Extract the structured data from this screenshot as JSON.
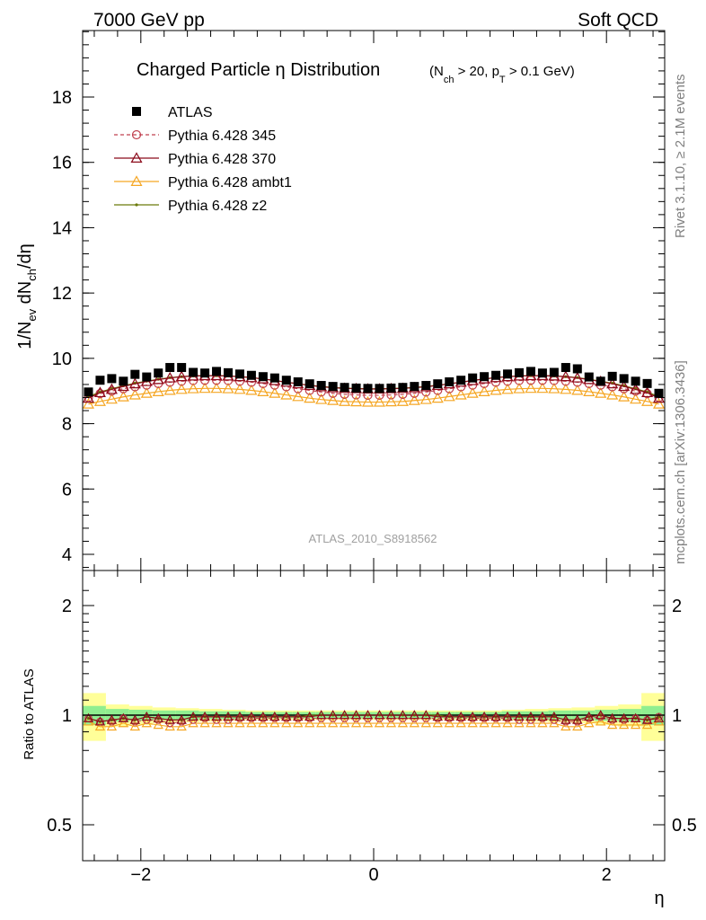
{
  "header": {
    "left": "7000 GeV pp",
    "right": "Soft QCD"
  },
  "side_labels": {
    "rivet": "Rivet 3.1.10, ≥ 2.1M events",
    "mcplots": "mcplots.cern.ch [arXiv:1306.3436]"
  },
  "colors": {
    "atlas": "#000000",
    "p345": "#c0404f",
    "p370": "#8b0a1a",
    "ambt1": "#f5a623",
    "z2": "#6b7a0a",
    "band_inner": "#90ee90",
    "band_outer": "#ffff99"
  },
  "chart_data": [
    {
      "type": "scatter",
      "title_main": "Charged Particle η Distribution",
      "title_sub": "(N_ch > 20, p_T > 0.1 GeV)",
      "analysis_label": "ATLAS_2010_S8918562",
      "ylabel": "1/N_ev dN_ch/dη",
      "xlabel": "η",
      "xlim": [
        -2.5,
        2.5
      ],
      "ylim": [
        3.6,
        20.0
      ],
      "yticks": [
        4,
        6,
        8,
        10,
        12,
        14,
        16,
        18
      ],
      "xticks": [
        -2,
        0,
        2
      ],
      "legend_position": "top-left",
      "x": [
        -2.45,
        -2.35,
        -2.25,
        -2.15,
        -2.05,
        -1.95,
        -1.85,
        -1.75,
        -1.65,
        -1.55,
        -1.45,
        -1.35,
        -1.25,
        -1.15,
        -1.05,
        -0.95,
        -0.85,
        -0.75,
        -0.65,
        -0.55,
        -0.45,
        -0.35,
        -0.25,
        -0.15,
        -0.05,
        0.05,
        0.15,
        0.25,
        0.35,
        0.45,
        0.55,
        0.65,
        0.75,
        0.85,
        0.95,
        1.05,
        1.15,
        1.25,
        1.35,
        1.45,
        1.55,
        1.65,
        1.75,
        1.85,
        1.95,
        2.05,
        2.15,
        2.25,
        2.35,
        2.45
      ],
      "series": [
        {
          "name": "ATLAS",
          "marker": "square",
          "values": [
            8.97,
            9.33,
            9.38,
            9.3,
            9.51,
            9.43,
            9.55,
            9.72,
            9.72,
            9.57,
            9.55,
            9.6,
            9.56,
            9.52,
            9.48,
            9.44,
            9.4,
            9.33,
            9.28,
            9.22,
            9.17,
            9.14,
            9.11,
            9.09,
            9.08,
            9.08,
            9.09,
            9.11,
            9.14,
            9.17,
            9.22,
            9.28,
            9.33,
            9.4,
            9.44,
            9.48,
            9.52,
            9.56,
            9.6,
            9.55,
            9.57,
            9.72,
            9.68,
            9.43,
            9.3,
            9.45,
            9.38,
            9.3,
            9.23,
            8.93
          ]
        },
        {
          "name": "Pythia 6.428 345",
          "marker": "circle",
          "values": [
            8.8,
            8.92,
            9.0,
            9.07,
            9.13,
            9.18,
            9.23,
            9.27,
            9.3,
            9.32,
            9.33,
            9.33,
            9.32,
            9.3,
            9.27,
            9.23,
            9.18,
            9.13,
            9.07,
            9.02,
            8.97,
            8.93,
            8.9,
            8.88,
            8.87,
            8.87,
            8.88,
            8.9,
            8.93,
            8.97,
            9.02,
            9.07,
            9.13,
            9.18,
            9.23,
            9.27,
            9.3,
            9.32,
            9.33,
            9.33,
            9.32,
            9.3,
            9.27,
            9.23,
            9.18,
            9.13,
            9.07,
            9.0,
            8.92,
            8.8
          ]
        },
        {
          "name": "Pythia 6.428 370",
          "marker": "triangle",
          "values": [
            8.78,
            8.95,
            9.05,
            9.14,
            9.22,
            9.29,
            9.35,
            9.4,
            9.44,
            9.46,
            9.47,
            9.47,
            9.46,
            9.44,
            9.41,
            9.37,
            9.32,
            9.27,
            9.22,
            9.17,
            9.13,
            9.1,
            9.08,
            9.07,
            9.06,
            9.06,
            9.07,
            9.08,
            9.1,
            9.13,
            9.17,
            9.22,
            9.27,
            9.32,
            9.37,
            9.41,
            9.44,
            9.46,
            9.47,
            9.47,
            9.46,
            9.44,
            9.4,
            9.35,
            9.29,
            9.22,
            9.14,
            9.05,
            8.95,
            8.78
          ]
        },
        {
          "name": "Pythia 6.428 ambt1",
          "marker": "triangle-open",
          "values": [
            8.6,
            8.68,
            8.75,
            8.82,
            8.88,
            8.93,
            8.98,
            9.02,
            9.05,
            9.07,
            9.08,
            9.08,
            9.07,
            9.05,
            9.02,
            8.98,
            8.93,
            8.88,
            8.83,
            8.78,
            8.74,
            8.71,
            8.68,
            8.67,
            8.66,
            8.66,
            8.67,
            8.68,
            8.71,
            8.74,
            8.78,
            8.83,
            8.88,
            8.93,
            8.98,
            9.02,
            9.05,
            9.07,
            9.08,
            9.08,
            9.07,
            9.05,
            9.02,
            8.98,
            8.93,
            8.88,
            8.82,
            8.75,
            8.68,
            8.6
          ]
        },
        {
          "name": "Pythia 6.428 z2",
          "marker": "dot",
          "values": [
            8.83,
            8.97,
            9.07,
            9.16,
            9.24,
            9.3,
            9.36,
            9.41,
            9.44,
            9.46,
            9.47,
            9.47,
            9.46,
            9.44,
            9.41,
            9.37,
            9.32,
            9.27,
            9.22,
            9.18,
            9.14,
            9.11,
            9.09,
            9.08,
            9.07,
            9.07,
            9.08,
            9.09,
            9.11,
            9.14,
            9.18,
            9.22,
            9.27,
            9.32,
            9.37,
            9.41,
            9.44,
            9.46,
            9.47,
            9.47,
            9.46,
            9.44,
            9.41,
            9.36,
            9.3,
            9.24,
            9.16,
            9.07,
            8.97,
            8.83
          ]
        }
      ]
    },
    {
      "type": "scatter",
      "ylabel": "Ratio to ATLAS",
      "xlabel": "η",
      "xlim": [
        -2.5,
        2.5
      ],
      "ylim": [
        0.4,
        2.4
      ],
      "yscale": "log",
      "yticks": [
        0.5,
        1,
        2
      ],
      "ytick_labels": [
        "0.5",
        "1",
        "2"
      ],
      "xticks": [
        -2,
        0,
        2
      ],
      "xtick_labels": [
        "−2",
        "0",
        "2"
      ],
      "band_edges": [
        -2.5,
        -2.3,
        -2.1,
        -1.9,
        -1.7,
        -1.5,
        -1.3,
        -1.1,
        -0.9,
        -0.7,
        -0.5,
        -0.3,
        -0.1,
        0.1,
        0.3,
        0.5,
        0.7,
        0.9,
        1.1,
        1.3,
        1.5,
        1.7,
        1.9,
        2.1,
        2.3,
        2.5
      ],
      "band_inner": [
        0.06,
        0.04,
        0.035,
        0.03,
        0.03,
        0.025,
        0.025,
        0.02,
        0.02,
        0.02,
        0.02,
        0.02,
        0.02,
        0.02,
        0.02,
        0.02,
        0.02,
        0.02,
        0.025,
        0.025,
        0.03,
        0.03,
        0.035,
        0.04,
        0.06
      ],
      "band_outer": [
        0.15,
        0.07,
        0.06,
        0.05,
        0.045,
        0.04,
        0.035,
        0.03,
        0.03,
        0.03,
        0.03,
        0.03,
        0.03,
        0.03,
        0.03,
        0.03,
        0.03,
        0.03,
        0.035,
        0.04,
        0.045,
        0.05,
        0.06,
        0.07,
        0.15
      ],
      "series": [
        {
          "name": "Pythia 6.428 345",
          "marker": "circle",
          "values": [
            0.98,
            0.96,
            0.96,
            0.98,
            0.96,
            0.97,
            0.97,
            0.95,
            0.96,
            0.97,
            0.98,
            0.97,
            0.97,
            0.98,
            0.98,
            0.98,
            0.98,
            0.98,
            0.98,
            0.98,
            0.98,
            0.98,
            0.98,
            0.98,
            0.98,
            0.98,
            0.98,
            0.98,
            0.98,
            0.98,
            0.98,
            0.98,
            0.98,
            0.98,
            0.98,
            0.98,
            0.98,
            0.97,
            0.97,
            0.98,
            0.97,
            0.96,
            0.96,
            0.98,
            0.99,
            0.97,
            0.97,
            0.98,
            0.97,
            0.99
          ]
        },
        {
          "name": "Pythia 6.428 370",
          "marker": "triangle",
          "values": [
            0.98,
            0.96,
            0.97,
            0.98,
            0.97,
            0.99,
            0.98,
            0.97,
            0.97,
            0.99,
            0.99,
            0.99,
            0.99,
            0.99,
            0.99,
            0.99,
            0.99,
            0.99,
            0.99,
            0.99,
            1.0,
            1.0,
            1.0,
            1.0,
            1.0,
            1.0,
            1.0,
            1.0,
            1.0,
            1.0,
            0.99,
            0.99,
            0.99,
            0.99,
            0.99,
            0.99,
            0.99,
            0.99,
            0.99,
            0.99,
            0.99,
            0.97,
            0.97,
            0.99,
            1.0,
            0.98,
            0.98,
            0.98,
            0.97,
            0.98
          ]
        },
        {
          "name": "Pythia 6.428 ambt1",
          "marker": "triangle-open",
          "values": [
            0.96,
            0.93,
            0.93,
            0.95,
            0.93,
            0.95,
            0.94,
            0.93,
            0.93,
            0.95,
            0.95,
            0.95,
            0.95,
            0.95,
            0.95,
            0.95,
            0.95,
            0.95,
            0.95,
            0.95,
            0.95,
            0.95,
            0.95,
            0.95,
            0.95,
            0.95,
            0.95,
            0.95,
            0.95,
            0.95,
            0.95,
            0.95,
            0.95,
            0.95,
            0.95,
            0.95,
            0.95,
            0.95,
            0.95,
            0.95,
            0.95,
            0.93,
            0.93,
            0.95,
            0.96,
            0.94,
            0.94,
            0.94,
            0.94,
            0.96
          ]
        },
        {
          "name": "Pythia 6.428 z2",
          "marker": "dot",
          "values": [
            0.98,
            0.96,
            0.97,
            0.98,
            0.97,
            0.99,
            0.98,
            0.97,
            0.97,
            0.99,
            0.99,
            0.99,
            0.99,
            0.99,
            0.99,
            0.99,
            0.99,
            0.99,
            0.99,
            1.0,
            1.0,
            1.0,
            1.0,
            1.0,
            1.0,
            1.0,
            1.0,
            1.0,
            1.0,
            1.0,
            1.0,
            0.99,
            0.99,
            0.99,
            0.99,
            0.99,
            0.99,
            0.99,
            0.99,
            0.99,
            0.99,
            0.97,
            0.97,
            0.99,
            1.0,
            0.98,
            0.98,
            0.98,
            0.97,
            0.99
          ]
        }
      ]
    }
  ]
}
